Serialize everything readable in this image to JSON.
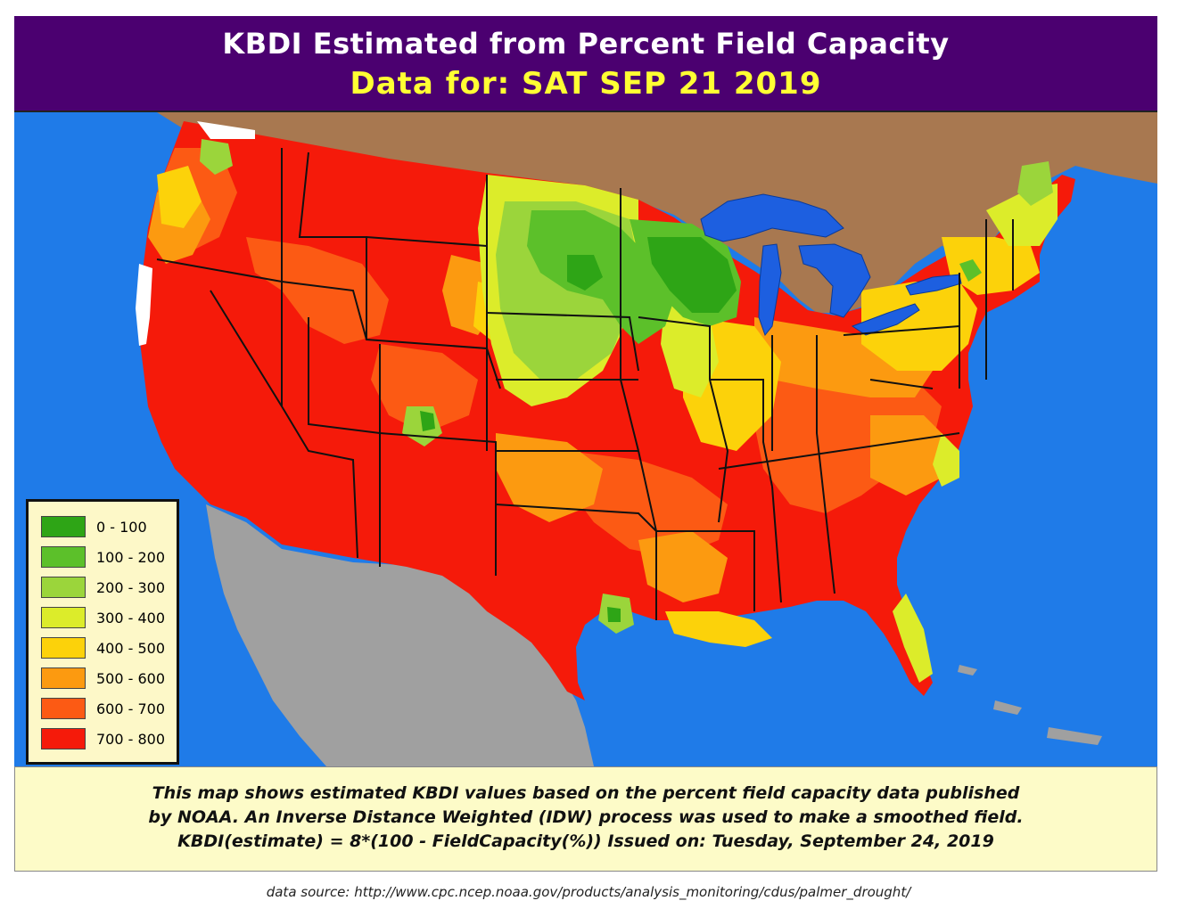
{
  "title": {
    "line1": "KBDI Estimated from Percent Field Capacity",
    "line2": "Data for:  SAT SEP 21 2019"
  },
  "legend": {
    "items": [
      {
        "label": "0 - 100",
        "color": "#2ea516"
      },
      {
        "label": "100 - 200",
        "color": "#5cc02a"
      },
      {
        "label": "200 - 300",
        "color": "#9bd53b"
      },
      {
        "label": "300 - 400",
        "color": "#dcec2a"
      },
      {
        "label": "400 - 500",
        "color": "#fcd20a"
      },
      {
        "label": "500 - 600",
        "color": "#fc9a10"
      },
      {
        "label": "600 - 700",
        "color": "#fc5a14"
      },
      {
        "label": "700 - 800",
        "color": "#f51a0a"
      }
    ]
  },
  "info": {
    "line1": "This map shows estimated KBDI values based on the percent field capacity data published",
    "line2": "by NOAA. An Inverse Distance Weighted (IDW) process was used to make a smoothed field.",
    "line3": "KBDI(estimate) = 8*(100 - FieldCapacity(%))      Issued on: Tuesday, September 24, 2019"
  },
  "source": "data source: http://www.cpc.ncep.noaa.gov/products/analysis_monitoring/cdus/palmer_drought/",
  "colors": {
    "ocean": "#1f7be8",
    "canada": "#a87850",
    "mexico": "#a0a0a0",
    "lakes": "#1d5fe0",
    "title_bg": "#4b0070"
  }
}
